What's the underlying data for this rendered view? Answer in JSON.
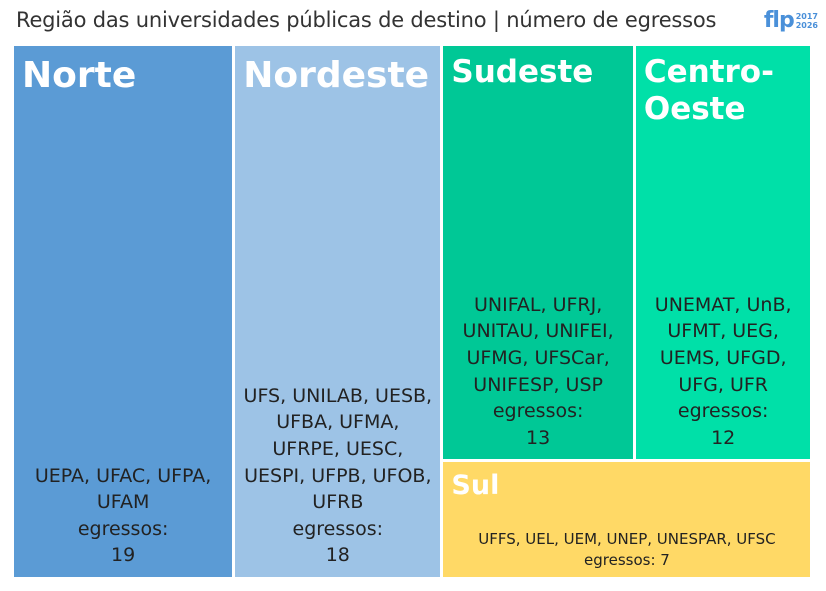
{
  "header": {
    "title": "Região das universidades públicas de destino | número de egressos",
    "logo": {
      "text": "flp",
      "year_start": "2017",
      "year_end": "2026"
    }
  },
  "chart_data": {
    "type": "treemap",
    "title": "Região das universidades públicas de destino | número de egressos",
    "value_label": "egressos:",
    "series": [
      {
        "name": "Norte",
        "universities": "UEPA, UFAC, UFPA, UFAM",
        "value": 19,
        "color": "#5b9bd5"
      },
      {
        "name": "Nordeste",
        "universities": "UFS, UNILAB, UESB, UFBA, UFMA, UFRPE, UESC, UESPI, UFPB, UFOB, UFRB",
        "value": 18,
        "color": "#9dc3e6"
      },
      {
        "name": "Sudeste",
        "universities": "UNIFAL, UFRJ, UNITAU, UNIFEI, UFMG, UFSCar, UNIFESP, USP",
        "value": 13,
        "color": "#00c896"
      },
      {
        "name": "Centro-Oeste",
        "universities": "UNEMAT, UnB, UFMT, UEG, UEMS, UFGD, UFG, UFR",
        "value": 12,
        "color": "#00e0a8"
      },
      {
        "name": "Sul",
        "universities": "UFFS, UEL, UEM, UNEP, UNESPAR, UFSC",
        "value": 7,
        "color": "#ffd966"
      }
    ]
  }
}
